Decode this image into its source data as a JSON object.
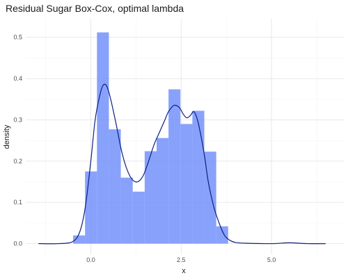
{
  "chart_data": {
    "type": "bar",
    "title": "Residual Sugar Box-Cox, optimal lambda",
    "xlabel": "x",
    "ylabel": "density",
    "xlim": [
      -1.8,
      7.0
    ],
    "ylim": [
      -0.026,
      0.545
    ],
    "x_ticks": [
      0.0,
      2.5,
      5.0
    ],
    "x_tick_labels": [
      "0.0",
      "2.5",
      "5.0"
    ],
    "y_ticks": [
      0.0,
      0.1,
      0.2,
      0.3,
      0.4,
      0.5
    ],
    "y_tick_labels": [
      "0.0",
      "0.1",
      "0.2",
      "0.3",
      "0.4",
      "0.5"
    ],
    "grid": true,
    "legend": "none",
    "colors": {
      "bars": "#6e8efb",
      "density_line": "#0d1f80",
      "grid_major": "#e6e6e6",
      "grid_minor": "#f3f3f3"
    },
    "histogram": {
      "bin_width": 0.33,
      "bins": [
        {
          "x_start": -0.49,
          "x_end": -0.16,
          "density": 0.02
        },
        {
          "x_start": -0.16,
          "x_end": 0.17,
          "density": 0.175
        },
        {
          "x_start": 0.17,
          "x_end": 0.5,
          "density": 0.512
        },
        {
          "x_start": 0.5,
          "x_end": 0.83,
          "density": 0.277
        },
        {
          "x_start": 0.83,
          "x_end": 1.16,
          "density": 0.16
        },
        {
          "x_start": 1.16,
          "x_end": 1.49,
          "density": 0.126
        },
        {
          "x_start": 1.49,
          "x_end": 1.82,
          "density": 0.224
        },
        {
          "x_start": 1.82,
          "x_end": 2.15,
          "density": 0.256
        },
        {
          "x_start": 2.15,
          "x_end": 2.48,
          "density": 0.374
        },
        {
          "x_start": 2.48,
          "x_end": 2.81,
          "density": 0.29
        },
        {
          "x_start": 2.81,
          "x_end": 3.14,
          "density": 0.322
        },
        {
          "x_start": 3.14,
          "x_end": 3.47,
          "density": 0.223
        },
        {
          "x_start": 3.47,
          "x_end": 3.8,
          "density": 0.042
        }
      ]
    },
    "density_curve": {
      "x": [
        -1.45,
        -0.9,
        -0.5,
        -0.3,
        -0.15,
        0.0,
        0.12,
        0.25,
        0.35,
        0.45,
        0.55,
        0.7,
        0.85,
        1.0,
        1.15,
        1.3,
        1.45,
        1.6,
        1.75,
        1.9,
        2.05,
        2.15,
        2.3,
        2.45,
        2.55,
        2.65,
        2.75,
        2.85,
        2.95,
        3.05,
        3.15,
        3.25,
        3.4,
        3.55,
        3.7,
        3.85,
        4.0,
        4.3,
        5.0,
        5.5,
        6.0,
        6.5
      ],
      "y": [
        0.0,
        0.0,
        0.005,
        0.03,
        0.09,
        0.2,
        0.3,
        0.36,
        0.385,
        0.38,
        0.35,
        0.29,
        0.225,
        0.18,
        0.155,
        0.15,
        0.165,
        0.2,
        0.24,
        0.27,
        0.3,
        0.32,
        0.335,
        0.33,
        0.315,
        0.305,
        0.31,
        0.32,
        0.3,
        0.26,
        0.21,
        0.15,
        0.09,
        0.05,
        0.02,
        0.008,
        0.003,
        0.001,
        0.0,
        0.002,
        0.0,
        0.0
      ]
    }
  }
}
